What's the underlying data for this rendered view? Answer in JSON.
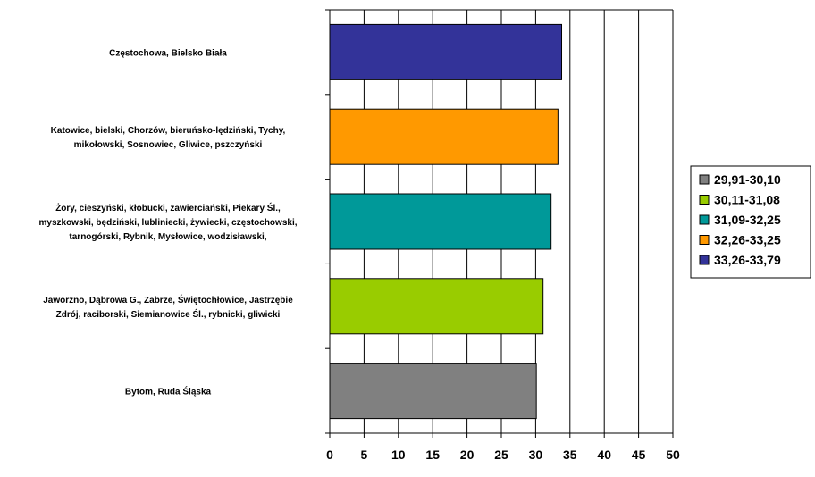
{
  "chart_data": {
    "type": "bar",
    "orientation": "horizontal",
    "categories": [
      [
        "Częstochowa, Bielsko Biała"
      ],
      [
        "Katowice, bielski, Chorzów, bieruńsko-lędziński, Tychy,",
        "mikołowski, Sosnowiec, Gliwice, pszczyński"
      ],
      [
        "Żory, cieszyński, kłobucki, zawierciański, Piekary Śl.,",
        "myszkowski, będziński, lubliniecki, żywiecki, częstochowski,",
        "tarnogórski, Rybnik, Mysłowice, wodzisławski,"
      ],
      [
        "Jaworzno,  Dąbrowa G., Zabrze, Świętochłowice, Jastrzębie",
        "Zdrój, raciborski, Siemianowice Śl., rybnicki, gliwicki"
      ],
      [
        "Bytom, Ruda Śląska"
      ]
    ],
    "values": [
      33.79,
      33.25,
      32.25,
      31.08,
      30.1
    ],
    "colors": [
      "#333399",
      "#ff9900",
      "#009999",
      "#99cc00",
      "#808080"
    ],
    "xlim": [
      0,
      50
    ],
    "xticks": [
      "0",
      "5",
      "10",
      "15",
      "20",
      "25",
      "30",
      "35",
      "40",
      "45",
      "50"
    ],
    "grid": true,
    "legend_position": "right",
    "legend": [
      {
        "label": "29,91-30,10",
        "color": "#808080"
      },
      {
        "label": "30,11-31,08",
        "color": "#99cc00"
      },
      {
        "label": "31,09-32,25",
        "color": "#009999"
      },
      {
        "label": "32,26-33,25",
        "color": "#ff9900"
      },
      {
        "label": "33,26-33,79",
        "color": "#333399"
      }
    ]
  }
}
